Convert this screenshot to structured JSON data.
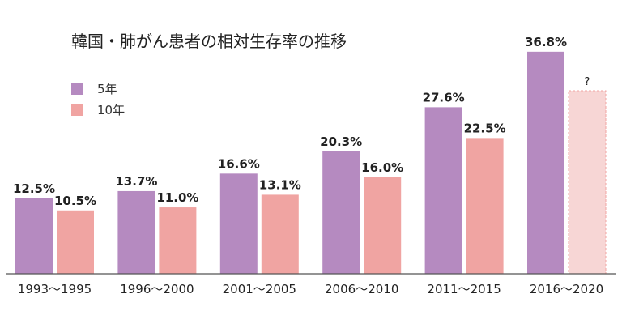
{
  "chart_data": {
    "type": "bar",
    "title": "韓国・肺がん患者の相対生存率の推移",
    "categories": [
      "1993〜1995",
      "1996〜2000",
      "2001〜2005",
      "2006〜2010",
      "2011〜2015",
      "2016〜2020"
    ],
    "series": [
      {
        "name": "5年",
        "color": "#b58ac0",
        "values": [
          12.5,
          13.7,
          16.6,
          20.3,
          27.6,
          36.8
        ],
        "labels": [
          "12.5%",
          "13.7%",
          "16.6%",
          "20.3%",
          "27.6%",
          "36.8%"
        ]
      },
      {
        "name": "10年",
        "color": "#f0a4a2",
        "values": [
          10.5,
          11.0,
          13.1,
          16.0,
          22.5,
          null
        ],
        "labels": [
          "10.5%",
          "11.0%",
          "13.1%",
          "16.0%",
          "22.5%",
          "?"
        ]
      }
    ],
    "unknown_bar_color": "#f7d6d5",
    "ylim": [
      0,
      40
    ],
    "legend_position": "top-left",
    "grid": false
  }
}
